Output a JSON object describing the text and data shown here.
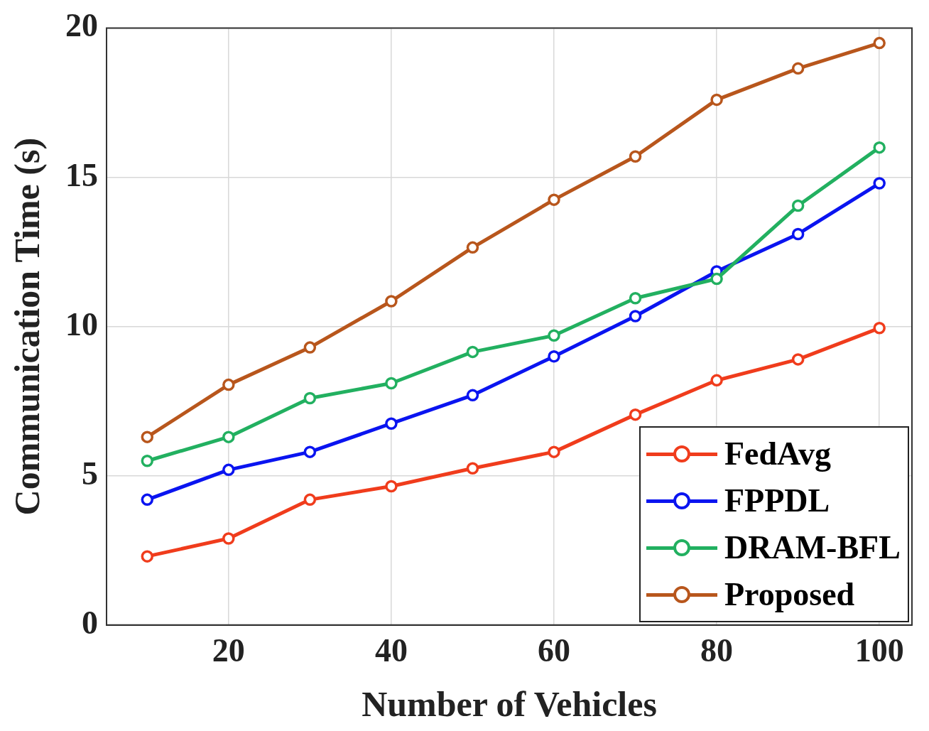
{
  "chart_data": {
    "type": "line",
    "xlabel": "Number of Vehicles",
    "ylabel": "Communication Time (s)",
    "x": [
      10,
      20,
      30,
      40,
      50,
      60,
      70,
      80,
      90,
      100
    ],
    "xlim": [
      5,
      104
    ],
    "xticks": [
      20,
      40,
      60,
      80,
      100
    ],
    "ylim": [
      0,
      20
    ],
    "yticks": [
      0,
      5,
      10,
      15,
      20
    ],
    "grid": true,
    "legend": "bottom right",
    "marker": "circle",
    "line_style": "solid",
    "series": [
      {
        "name": "FedAvg",
        "color": "#f03c1c",
        "values": [
          2.3,
          2.9,
          4.2,
          4.65,
          5.25,
          5.8,
          7.05,
          8.2,
          8.9,
          9.95
        ]
      },
      {
        "name": "FPPDL",
        "color": "#0a14f0",
        "values": [
          4.2,
          5.2,
          5.8,
          6.75,
          7.7,
          9.0,
          10.35,
          11.85,
          13.1,
          14.8
        ]
      },
      {
        "name": "DRAM-BFL",
        "color": "#22b060",
        "values": [
          5.5,
          6.3,
          7.6,
          8.1,
          9.15,
          9.7,
          10.95,
          11.6,
          14.05,
          16.0
        ]
      },
      {
        "name": "Proposed",
        "color": "#b8561c",
        "values": [
          6.3,
          8.05,
          9.3,
          10.85,
          12.65,
          14.25,
          15.7,
          17.6,
          18.65,
          19.5
        ]
      }
    ]
  }
}
